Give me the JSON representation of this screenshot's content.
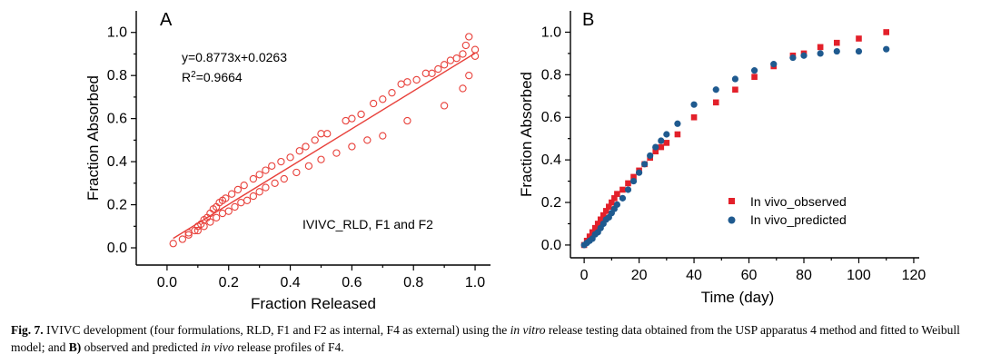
{
  "chart_data": [
    {
      "panel": "A",
      "type": "scatter",
      "xlabel": "Fraction Released",
      "ylabel": "Fraction Absorbed",
      "xlim": [
        -0.1,
        1.05
      ],
      "ylim": [
        -0.08,
        1.1
      ],
      "xticks": [
        "0.0",
        "0.2",
        "0.4",
        "0.6",
        "0.8",
        "1.0"
      ],
      "yticks": [
        "0.0",
        "0.2",
        "0.4",
        "0.6",
        "0.8",
        "1.0"
      ],
      "equation": "y=0.8773x+0.0263",
      "r2_prefix": "R",
      "r2_sup": "2",
      "r2_value": "=0.9664",
      "legend": "IVIVC_RLD, F1 and F2",
      "color": "#e8403a",
      "fit": {
        "slope": 0.8773,
        "intercept": 0.0263,
        "x_range": [
          0.02,
          1.0
        ]
      },
      "points": [
        [
          0.02,
          0.02
        ],
        [
          0.05,
          0.04
        ],
        [
          0.07,
          0.06
        ],
        [
          0.09,
          0.08
        ],
        [
          0.1,
          0.1
        ],
        [
          0.11,
          0.11
        ],
        [
          0.12,
          0.13
        ],
        [
          0.13,
          0.14
        ],
        [
          0.14,
          0.16
        ],
        [
          0.15,
          0.18
        ],
        [
          0.16,
          0.19
        ],
        [
          0.17,
          0.21
        ],
        [
          0.18,
          0.22
        ],
        [
          0.19,
          0.23
        ],
        [
          0.21,
          0.25
        ],
        [
          0.23,
          0.27
        ],
        [
          0.25,
          0.29
        ],
        [
          0.28,
          0.32
        ],
        [
          0.3,
          0.34
        ],
        [
          0.32,
          0.36
        ],
        [
          0.34,
          0.38
        ],
        [
          0.37,
          0.4
        ],
        [
          0.4,
          0.42
        ],
        [
          0.43,
          0.45
        ],
        [
          0.45,
          0.47
        ],
        [
          0.48,
          0.5
        ],
        [
          0.5,
          0.53
        ],
        [
          0.52,
          0.53
        ],
        [
          0.58,
          0.59
        ],
        [
          0.6,
          0.6
        ],
        [
          0.63,
          0.62
        ],
        [
          0.67,
          0.67
        ],
        [
          0.7,
          0.69
        ],
        [
          0.73,
          0.72
        ],
        [
          0.76,
          0.76
        ],
        [
          0.78,
          0.77
        ],
        [
          0.81,
          0.78
        ],
        [
          0.84,
          0.81
        ],
        [
          0.86,
          0.81
        ],
        [
          0.88,
          0.83
        ],
        [
          0.9,
          0.85
        ],
        [
          0.92,
          0.87
        ],
        [
          0.94,
          0.88
        ],
        [
          0.96,
          0.9
        ],
        [
          0.97,
          0.94
        ],
        [
          0.98,
          0.98
        ],
        [
          1.0,
          0.92
        ],
        [
          0.1,
          0.08
        ],
        [
          0.12,
          0.1
        ],
        [
          0.14,
          0.12
        ],
        [
          0.16,
          0.14
        ],
        [
          0.18,
          0.16
        ],
        [
          0.2,
          0.17
        ],
        [
          0.22,
          0.19
        ],
        [
          0.24,
          0.21
        ],
        [
          0.26,
          0.22
        ],
        [
          0.28,
          0.24
        ],
        [
          0.3,
          0.26
        ],
        [
          0.32,
          0.28
        ],
        [
          0.35,
          0.3
        ],
        [
          0.38,
          0.32
        ],
        [
          0.42,
          0.35
        ],
        [
          0.46,
          0.38
        ],
        [
          0.5,
          0.41
        ],
        [
          0.55,
          0.44
        ],
        [
          0.6,
          0.47
        ],
        [
          0.65,
          0.5
        ],
        [
          0.7,
          0.52
        ],
        [
          0.78,
          0.59
        ],
        [
          0.9,
          0.66
        ],
        [
          0.96,
          0.74
        ],
        [
          0.98,
          0.8
        ],
        [
          1.0,
          0.89
        ],
        [
          0.07,
          0.07
        ]
      ]
    },
    {
      "panel": "B",
      "type": "scatter",
      "xlabel": "Time (day)",
      "ylabel": "Fraction Absorbed",
      "xlim": [
        -5,
        122
      ],
      "ylim": [
        -0.06,
        1.1
      ],
      "xticks": [
        "0",
        "20",
        "40",
        "60",
        "80",
        "100",
        "120"
      ],
      "yticks": [
        "0.0",
        "0.2",
        "0.4",
        "0.6",
        "0.8",
        "1.0"
      ],
      "series": [
        {
          "name": "In vivo_observed",
          "color": "#e3202a",
          "marker": "square",
          "points": [
            [
              0,
              0
            ],
            [
              1,
              0.02
            ],
            [
              2,
              0.04
            ],
            [
              3,
              0.06
            ],
            [
              4,
              0.08
            ],
            [
              5,
              0.1
            ],
            [
              6,
              0.12
            ],
            [
              7,
              0.14
            ],
            [
              8,
              0.16
            ],
            [
              9,
              0.18
            ],
            [
              10,
              0.2
            ],
            [
              11,
              0.22
            ],
            [
              12,
              0.24
            ],
            [
              14,
              0.26
            ],
            [
              16,
              0.29
            ],
            [
              18,
              0.32
            ],
            [
              20,
              0.35
            ],
            [
              22,
              0.38
            ],
            [
              24,
              0.41
            ],
            [
              26,
              0.44
            ],
            [
              28,
              0.46
            ],
            [
              30,
              0.48
            ],
            [
              34,
              0.52
            ],
            [
              40,
              0.6
            ],
            [
              48,
              0.67
            ],
            [
              55,
              0.73
            ],
            [
              62,
              0.79
            ],
            [
              69,
              0.84
            ],
            [
              76,
              0.89
            ],
            [
              80,
              0.9
            ],
            [
              86,
              0.93
            ],
            [
              92,
              0.95
            ],
            [
              100,
              0.97
            ],
            [
              110,
              1.0
            ]
          ]
        },
        {
          "name": "In vivo_predicted",
          "color": "#1f5a8f",
          "marker": "circle",
          "points": [
            [
              0,
              0
            ],
            [
              1,
              0.01
            ],
            [
              2,
              0.02
            ],
            [
              3,
              0.03
            ],
            [
              4,
              0.05
            ],
            [
              5,
              0.06
            ],
            [
              6,
              0.08
            ],
            [
              7,
              0.1
            ],
            [
              8,
              0.12
            ],
            [
              9,
              0.13
            ],
            [
              10,
              0.15
            ],
            [
              11,
              0.17
            ],
            [
              12,
              0.19
            ],
            [
              14,
              0.22
            ],
            [
              16,
              0.26
            ],
            [
              18,
              0.3
            ],
            [
              20,
              0.34
            ],
            [
              22,
              0.38
            ],
            [
              24,
              0.42
            ],
            [
              26,
              0.46
            ],
            [
              28,
              0.49
            ],
            [
              30,
              0.52
            ],
            [
              34,
              0.57
            ],
            [
              40,
              0.66
            ],
            [
              48,
              0.73
            ],
            [
              55,
              0.78
            ],
            [
              62,
              0.82
            ],
            [
              69,
              0.85
            ],
            [
              76,
              0.88
            ],
            [
              80,
              0.89
            ],
            [
              86,
              0.9
            ],
            [
              92,
              0.91
            ],
            [
              100,
              0.91
            ],
            [
              110,
              0.92
            ]
          ]
        }
      ]
    }
  ],
  "caption": {
    "label": "Fig. 7.",
    "part1": "IVIVC development (four formulations, RLD, F1 and F2 as internal, F4 as external) using the",
    "italic1": "in vitro",
    "part2": "release testing data obtained from the USP apparatus 4 method and fitted to Weibull model; and",
    "bold_b": "B)",
    "part3": "observed and predicted",
    "italic2": "in vivo",
    "part4": "release profiles of F4."
  }
}
